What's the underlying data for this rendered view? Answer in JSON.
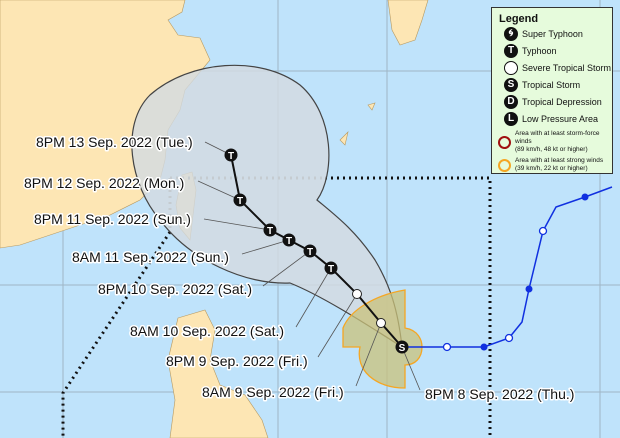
{
  "legend": {
    "title": "Legend",
    "items": [
      {
        "icon": "super-typhoon-icon",
        "symbol": "",
        "label": "Super Typhoon"
      },
      {
        "icon": "typhoon-icon",
        "symbol": "T",
        "label": "Typhoon"
      },
      {
        "icon": "severe-tropical-storm-icon",
        "symbol": "",
        "label": "Severe Tropical Storm"
      },
      {
        "icon": "tropical-storm-icon",
        "symbol": "S",
        "label": "Tropical Storm"
      },
      {
        "icon": "tropical-depression-icon",
        "symbol": "D",
        "label": "Tropical Depression"
      },
      {
        "icon": "low-pressure-area-icon",
        "symbol": "L",
        "label": "Low Pressure Area"
      }
    ],
    "areas": [
      {
        "color": "#a01010",
        "line1": "Area with at least storm-force winds",
        "line2": "(89 km/h, 48 kt or higher)"
      },
      {
        "color": "#f5a623",
        "line1": "Area with at least strong winds",
        "line2": "(39 km/h, 22 kt or higher)"
      }
    ]
  },
  "track": {
    "forecast": [
      {
        "label": "8PM 8 Sep. 2022 (Thu.)",
        "category": "S"
      },
      {
        "label": "8AM 9 Sep. 2022 (Fri.)",
        "category": "STS"
      },
      {
        "label": "8PM 9 Sep. 2022 (Fri.)",
        "category": "STS"
      },
      {
        "label": "8AM 10 Sep. 2022 (Sat.)",
        "category": "T"
      },
      {
        "label": "8PM 10 Sep. 2022 (Sat.)",
        "category": "T"
      },
      {
        "label": "8AM 11 Sep. 2022 (Sun.)",
        "category": "T"
      },
      {
        "label": "8PM 11 Sep. 2022 (Sun.)",
        "category": "T"
      },
      {
        "label": "8PM 12 Sep. 2022 (Mon.)",
        "category": "T"
      },
      {
        "label": "8PM 13 Sep. 2022 (Tue.)",
        "category": "T"
      }
    ],
    "colors": {
      "past_track": "#1030e0",
      "cone": "#d3dbe0",
      "strong_wind_area": "#f5a623",
      "land": "#fde6b4",
      "sea": "#bfe3fb"
    }
  }
}
